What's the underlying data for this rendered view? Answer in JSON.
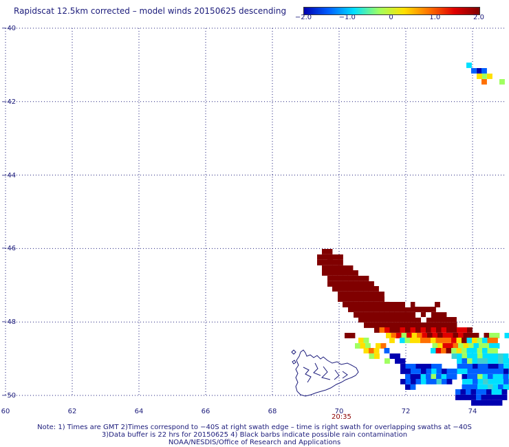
{
  "title": "Rapidscat 12.5km corrected – model winds 20150625 descending",
  "colorbar": {
    "ticks": [
      "−2.0",
      "−1.0",
      "0",
      "1.0",
      "2.0"
    ],
    "tick_values": [
      -2.0,
      -1.0,
      0,
      1.0,
      2.0
    ],
    "range": [
      -2.0,
      2.0
    ],
    "colors": [
      "#0000b0",
      "#0060ff",
      "#00e0ff",
      "#a0ff60",
      "#ffe000",
      "#ff7000",
      "#e00000",
      "#800000"
    ]
  },
  "axes": {
    "lat_labels": [
      "−40",
      "−42",
      "−44",
      "−46",
      "−48",
      "−50"
    ],
    "lat_values": [
      -40,
      -42,
      -44,
      -46,
      -48,
      -50
    ],
    "lon_labels": [
      "60",
      "62",
      "64",
      "66",
      "68",
      "70",
      "72",
      "74"
    ],
    "lon_values": [
      60,
      62,
      64,
      66,
      68,
      70,
      72,
      74
    ],
    "lon_range": [
      60,
      75
    ],
    "lat_range": [
      -40,
      -50
    ]
  },
  "time_label": "20:35",
  "notes": [
    "Note: 1) Times are GMT 2)Times correspond to −40S at right swath edge – time is right swath for overlapping swaths at −40S",
    "3)Data buffer is 22 hrs for 20150625 4) Black barbs indicate possible rain contamination",
    "NOAA/NESDIS/Office of Research and Applications"
  ]
}
